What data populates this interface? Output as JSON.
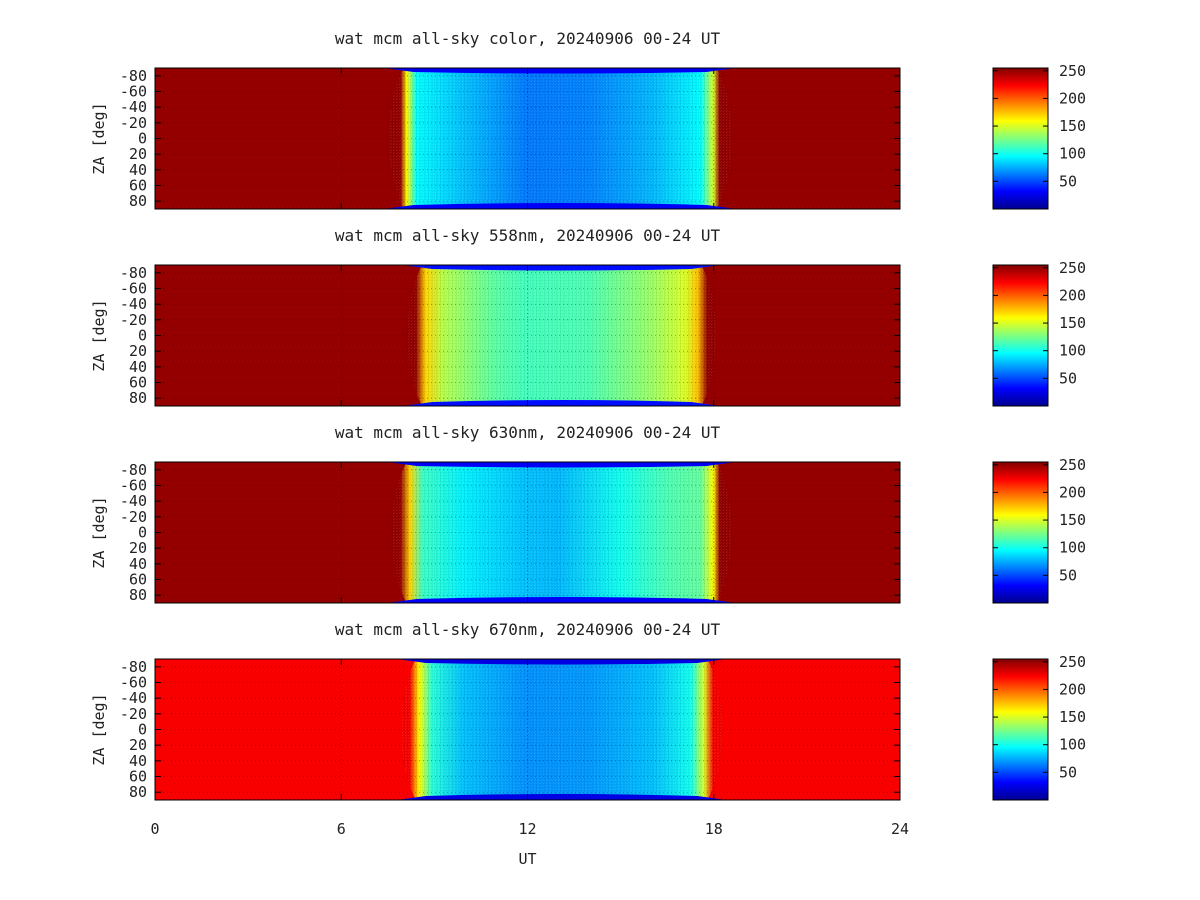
{
  "chart_data": [
    {
      "type": "heatmap",
      "title": "wat mcm all-sky color, 20240906 00-24 UT",
      "ylabel": "ZA [deg]",
      "xlim": [
        0,
        24
      ],
      "ylim": [
        -90,
        90
      ],
      "y_ticks": [
        "-80",
        "-60",
        "-40",
        "-20",
        "0",
        "20",
        "40",
        "60",
        "80"
      ],
      "colorbar": {
        "range": [
          0,
          255
        ],
        "ticks": [
          "50",
          "100",
          "150",
          "200",
          "250"
        ]
      },
      "saturated_value": 250,
      "dark_window_ut": [
        8.2,
        17.9
      ],
      "dark_level_ut": [
        [
          8.0,
          250
        ],
        [
          8.2,
          160
        ],
        [
          8.5,
          95
        ],
        [
          10,
          80
        ],
        [
          12,
          62
        ],
        [
          14,
          65
        ],
        [
          16,
          78
        ],
        [
          17.5,
          95
        ],
        [
          17.9,
          150
        ],
        [
          18.1,
          250
        ]
      ],
      "edge_band_value": 30
    },
    {
      "type": "heatmap",
      "title": "wat mcm all-sky 558nm, 20240906 00-24 UT",
      "ylabel": "ZA [deg]",
      "xlim": [
        0,
        24
      ],
      "ylim": [
        -90,
        90
      ],
      "y_ticks": [
        "-80",
        "-60",
        "-40",
        "-20",
        "0",
        "20",
        "40",
        "60",
        "80"
      ],
      "colorbar": {
        "range": [
          0,
          255
        ],
        "ticks": [
          "50",
          "100",
          "150",
          "200",
          "250"
        ]
      },
      "saturated_value": 250,
      "dark_window_ut": [
        8.8,
        17.4
      ],
      "dark_level_ut": [
        [
          8.5,
          250
        ],
        [
          8.8,
          170
        ],
        [
          9.4,
          140
        ],
        [
          11,
          118
        ],
        [
          12,
          112
        ],
        [
          14,
          115
        ],
        [
          16,
          135
        ],
        [
          17,
          150
        ],
        [
          17.4,
          175
        ],
        [
          17.7,
          250
        ]
      ],
      "edge_band_value": 35
    },
    {
      "type": "heatmap",
      "title": "wat mcm all-sky 630nm, 20240906 00-24 UT",
      "ylabel": "ZA [deg]",
      "xlim": [
        0,
        24
      ],
      "ylim": [
        -90,
        90
      ],
      "y_ticks": [
        "-80",
        "-60",
        "-40",
        "-20",
        "0",
        "20",
        "40",
        "60",
        "80"
      ],
      "colorbar": {
        "range": [
          0,
          255
        ],
        "ticks": [
          "50",
          "100",
          "150",
          "200",
          "250"
        ]
      },
      "saturated_value": 250,
      "dark_window_ut": [
        8.3,
        17.9
      ],
      "dark_level_ut": [
        [
          8.0,
          250
        ],
        [
          8.3,
          170
        ],
        [
          8.7,
          110
        ],
        [
          10,
          92
        ],
        [
          12,
          80
        ],
        [
          13,
          78
        ],
        [
          15,
          100
        ],
        [
          16.5,
          115
        ],
        [
          17.5,
          120
        ],
        [
          17.9,
          160
        ],
        [
          18.1,
          250
        ]
      ],
      "edge_band_value": 30
    },
    {
      "type": "heatmap",
      "title": "wat mcm all-sky 670nm, 20240906 00-24 UT",
      "ylabel": "ZA [deg]",
      "xlabel": "UT",
      "x_ticks": [
        "0",
        "6",
        "12",
        "18",
        "24"
      ],
      "xlim": [
        0,
        24
      ],
      "ylim": [
        -90,
        90
      ],
      "y_ticks": [
        "-80",
        "-60",
        "-40",
        "-20",
        "0",
        "20",
        "40",
        "60",
        "80"
      ],
      "colorbar": {
        "range": [
          0,
          255
        ],
        "ticks": [
          "50",
          "100",
          "150",
          "200",
          "250"
        ]
      },
      "saturated_value": 225,
      "dark_window_ut": [
        8.6,
        17.6
      ],
      "dark_level_ut": [
        [
          8.3,
          225
        ],
        [
          8.6,
          160
        ],
        [
          9.0,
          105
        ],
        [
          10,
          80
        ],
        [
          12,
          68
        ],
        [
          14,
          70
        ],
        [
          16,
          80
        ],
        [
          17.2,
          100
        ],
        [
          17.6,
          150
        ],
        [
          17.9,
          225
        ]
      ],
      "edge_band_value": 25
    }
  ]
}
